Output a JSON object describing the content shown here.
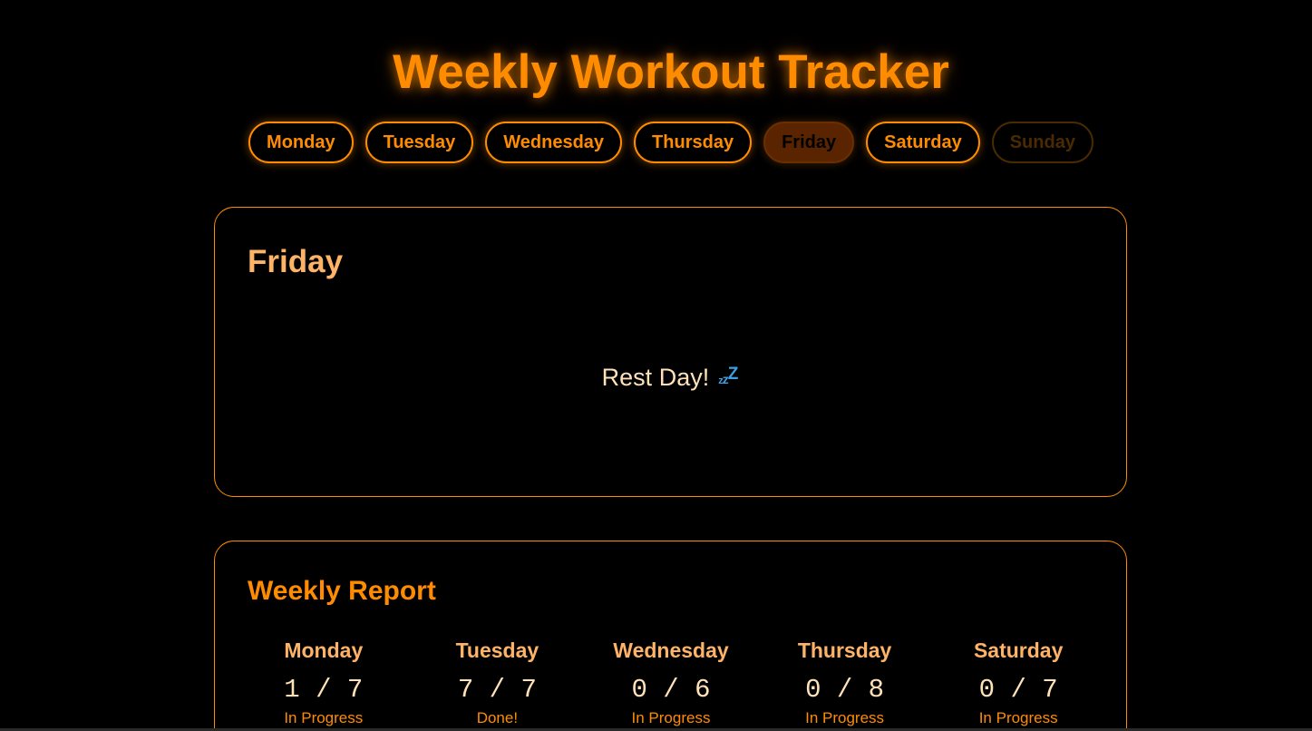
{
  "header": {
    "title": "Weekly Workout Tracker"
  },
  "tabs": [
    {
      "label": "Monday",
      "state": "normal"
    },
    {
      "label": "Tuesday",
      "state": "normal"
    },
    {
      "label": "Wednesday",
      "state": "normal"
    },
    {
      "label": "Thursday",
      "state": "normal"
    },
    {
      "label": "Friday",
      "state": "active"
    },
    {
      "label": "Saturday",
      "state": "normal"
    },
    {
      "label": "Sunday",
      "state": "disabled"
    }
  ],
  "day_card": {
    "title": "Friday",
    "message": "Rest Day!",
    "icon": "sleeping-zzz-icon"
  },
  "report": {
    "title": "Weekly Report",
    "items": [
      {
        "day": "Monday",
        "count": "1 / 7",
        "status": "In Progress"
      },
      {
        "day": "Tuesday",
        "count": "7 / 7",
        "status": "Done!"
      },
      {
        "day": "Wednesday",
        "count": "0 / 6",
        "status": "In Progress"
      },
      {
        "day": "Thursday",
        "count": "0 / 8",
        "status": "In Progress"
      },
      {
        "day": "Saturday",
        "count": "0 / 7",
        "status": "In Progress"
      }
    ]
  },
  "colors": {
    "accent": "#ff8c00",
    "light_accent": "#ffb366",
    "background": "#000000",
    "text_light": "#ffe2b8",
    "active_tab_bg": "#5a2400",
    "disabled": "#4a2a00",
    "icon_blue": "#3ea0e4"
  }
}
